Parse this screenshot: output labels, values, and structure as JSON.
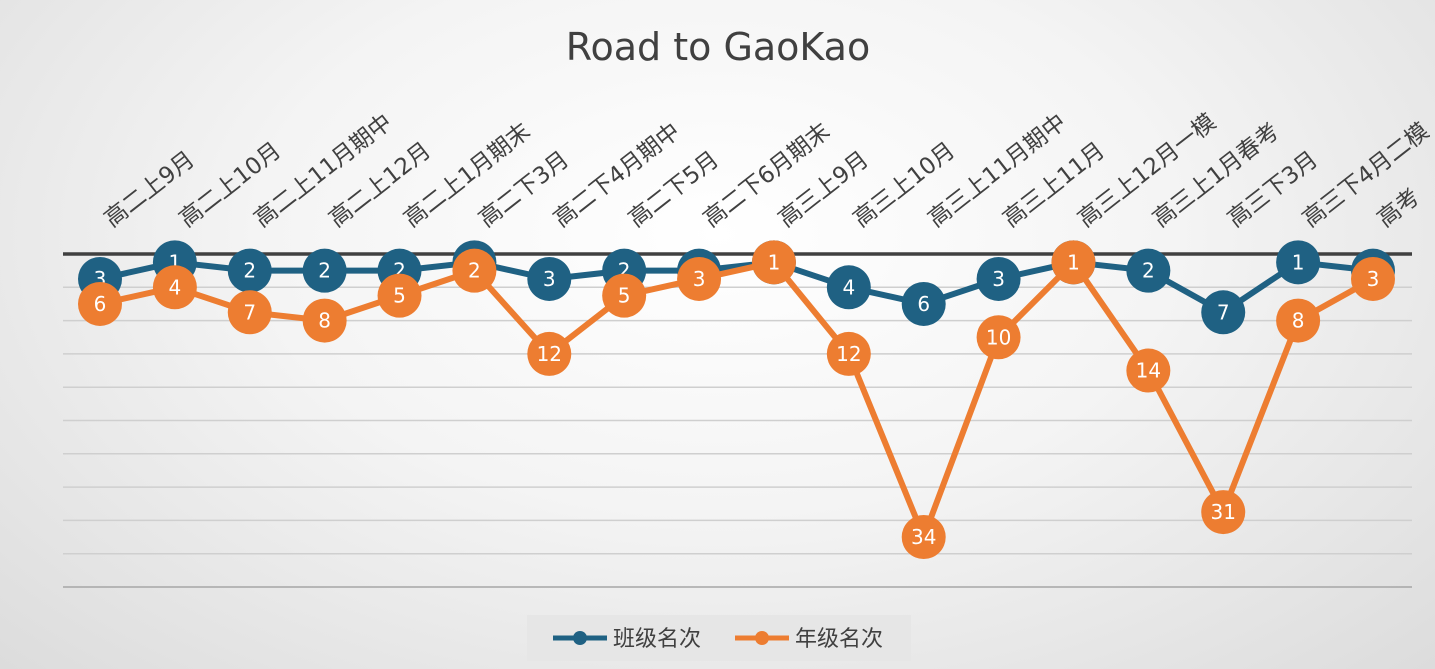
{
  "chart_data": {
    "type": "line",
    "title": "Road to GaoKao",
    "categories": [
      "高二上9月",
      "高二上10月",
      "高二上11月期中",
      "高二上12月",
      "高二上1月期末",
      "高二下3月",
      "高二下4月期中",
      "高二下5月",
      "高二下6月期末",
      "高三上9月",
      "高三上10月",
      "高三上11月期中",
      "高三上11月",
      "高三上12月一模",
      "高三上1月春考",
      "高三下3月",
      "高三下4月二模",
      "高考"
    ],
    "series": [
      {
        "name": "班级名次",
        "color": "#1f6183",
        "values": [
          3,
          1,
          2,
          2,
          2,
          1,
          3,
          2,
          2,
          1,
          4,
          6,
          3,
          1,
          2,
          7,
          1,
          2
        ]
      },
      {
        "name": "年级名次",
        "color": "#ed7d31",
        "values": [
          6,
          4,
          7,
          8,
          5,
          2,
          12,
          5,
          3,
          1,
          12,
          34,
          10,
          1,
          14,
          31,
          8,
          3
        ]
      }
    ],
    "yaxis": {
      "min": 0,
      "max": 40,
      "reversed": true,
      "gridlines": true,
      "tick_labels_visible": false
    },
    "legend": "bottom"
  }
}
